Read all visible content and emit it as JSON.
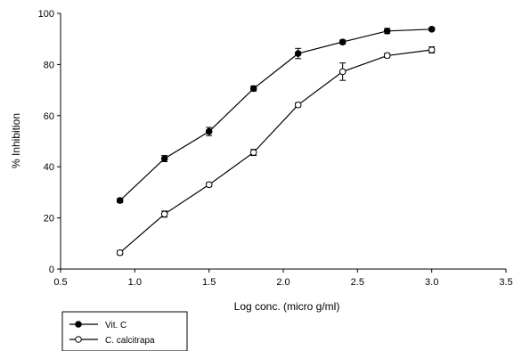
{
  "chart_data": {
    "type": "line",
    "xlabel": "Log conc. (micro g/ml)",
    "ylabel": "% Inhibition",
    "xlim": [
      0.5,
      3.5
    ],
    "ylim": [
      0,
      100
    ],
    "xticks": [
      "0.5",
      "1.0",
      "1.5",
      "2.0",
      "2.5",
      "3.0",
      "3.5"
    ],
    "yticks": [
      "0",
      "20",
      "40",
      "60",
      "80",
      "100"
    ],
    "grid": false,
    "legend_position": "bottom-left, below the plot",
    "series": [
      {
        "name": "Vit. C",
        "marker": "filled-circle",
        "color": "#000000",
        "x": [
          0.9,
          1.2,
          1.5,
          1.8,
          2.1,
          2.4,
          2.7,
          3.0
        ],
        "y": [
          26.8,
          43.2,
          53.8,
          70.6,
          84.3,
          88.8,
          93.1,
          93.8
        ],
        "error": [
          0.8,
          1.2,
          1.6,
          1.0,
          2.0,
          0.8,
          1.0,
          0.6
        ]
      },
      {
        "name": "C. calcitrapa",
        "marker": "open-circle",
        "color": "#000000",
        "x": [
          0.9,
          1.2,
          1.5,
          1.8,
          2.1,
          2.4,
          2.7,
          3.0
        ],
        "y": [
          6.4,
          21.5,
          33.0,
          45.6,
          64.2,
          77.2,
          83.5,
          85.7
        ],
        "error": [
          0.8,
          1.2,
          0.8,
          1.2,
          0.8,
          3.4,
          0.8,
          1.2
        ]
      }
    ]
  }
}
